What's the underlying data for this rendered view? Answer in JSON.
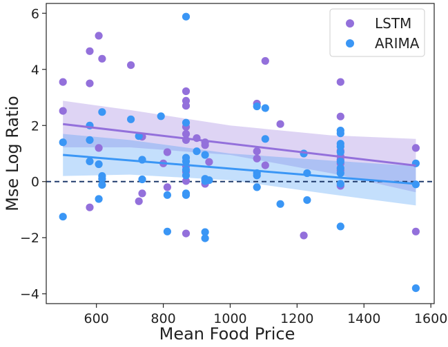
{
  "chart_data": {
    "type": "scatter",
    "xlabel": "Mean Food Price",
    "ylabel": "Mse Log Ratio",
    "xlim": [
      450,
      1610
    ],
    "ylim": [
      -4.35,
      6.35
    ],
    "xticks": [
      600,
      800,
      1000,
      1200,
      1400,
      1600
    ],
    "xtick_labels": [
      "600",
      "800",
      "1000",
      "1200",
      "1400",
      "1600"
    ],
    "yticks": [
      -4,
      -2,
      0,
      2,
      4,
      6
    ],
    "ytick_labels": [
      "−4",
      "−2",
      "0",
      "2",
      "4",
      "6"
    ],
    "grid": false,
    "legend_position": "top-right",
    "reference_line": {
      "y": 0,
      "style": "dashed",
      "color": "#1f3a6b"
    },
    "series": [
      {
        "name": "LSTM",
        "color": "#9370db",
        "points": [
          [
            500,
            3.55
          ],
          [
            500,
            2.52
          ],
          [
            580,
            4.65
          ],
          [
            580,
            3.5
          ],
          [
            580,
            -0.92
          ],
          [
            607,
            5.2
          ],
          [
            607,
            1.2
          ],
          [
            617,
            4.38
          ],
          [
            703,
            4.15
          ],
          [
            727,
            -0.7
          ],
          [
            737,
            1.6
          ],
          [
            737,
            -0.42
          ],
          [
            800,
            0.65
          ],
          [
            812,
            1.05
          ],
          [
            812,
            -0.2
          ],
          [
            868,
            3.22
          ],
          [
            868,
            2.88
          ],
          [
            868,
            2.7
          ],
          [
            868,
            1.95
          ],
          [
            868,
            1.7
          ],
          [
            868,
            1.48
          ],
          [
            868,
            0.55
          ],
          [
            868,
            0.35
          ],
          [
            868,
            0.02
          ],
          [
            868,
            -1.85
          ],
          [
            900,
            1.55
          ],
          [
            925,
            1.4
          ],
          [
            925,
            1.3
          ],
          [
            925,
            -0.08
          ],
          [
            937,
            0.7
          ],
          [
            1080,
            2.78
          ],
          [
            1080,
            1.08
          ],
          [
            1080,
            0.82
          ],
          [
            1105,
            4.3
          ],
          [
            1105,
            0.58
          ],
          [
            1150,
            2.05
          ],
          [
            1220,
            -1.92
          ],
          [
            1330,
            3.55
          ],
          [
            1330,
            2.32
          ],
          [
            1330,
            1.1
          ],
          [
            1330,
            0.9
          ],
          [
            1330,
            0.78
          ],
          [
            1330,
            0.65
          ],
          [
            1330,
            0.4
          ],
          [
            1330,
            -0.15
          ],
          [
            1555,
            1.2
          ],
          [
            1555,
            -1.78
          ]
        ],
        "fit": {
          "x": [
            500,
            1555
          ],
          "y": [
            2.05,
            0.57
          ]
        },
        "band": {
          "x": [
            500,
            700,
            1000,
            1300,
            1555
          ],
          "lower": [
            1.22,
            1.22,
            0.95,
            0.3,
            -0.38
          ],
          "upper": [
            2.88,
            2.55,
            2.0,
            1.65,
            1.52
          ]
        }
      },
      {
        "name": "ARIMA",
        "color": "#3a96f5",
        "points": [
          [
            500,
            1.4
          ],
          [
            500,
            -1.25
          ],
          [
            580,
            2.0
          ],
          [
            580,
            1.48
          ],
          [
            580,
            0.72
          ],
          [
            607,
            0.62
          ],
          [
            607,
            -0.62
          ],
          [
            617,
            2.48
          ],
          [
            617,
            0.2
          ],
          [
            617,
            0.1
          ],
          [
            617,
            -0.12
          ],
          [
            703,
            2.22
          ],
          [
            727,
            1.62
          ],
          [
            737,
            0.78
          ],
          [
            737,
            0.08
          ],
          [
            793,
            2.33
          ],
          [
            812,
            -0.48
          ],
          [
            812,
            -1.78
          ],
          [
            868,
            5.88
          ],
          [
            868,
            2.1
          ],
          [
            868,
            0.85
          ],
          [
            868,
            0.72
          ],
          [
            868,
            0.42
          ],
          [
            868,
            0.22
          ],
          [
            868,
            -0.42
          ],
          [
            868,
            -0.48
          ],
          [
            900,
            1.08
          ],
          [
            925,
            0.95
          ],
          [
            925,
            0.1
          ],
          [
            925,
            0.02
          ],
          [
            925,
            -1.8
          ],
          [
            925,
            -2.02
          ],
          [
            937,
            0.05
          ],
          [
            1080,
            2.68
          ],
          [
            1080,
            0.3
          ],
          [
            1080,
            0.22
          ],
          [
            1080,
            -0.2
          ],
          [
            1105,
            2.62
          ],
          [
            1105,
            1.52
          ],
          [
            1150,
            -0.8
          ],
          [
            1220,
            1.0
          ],
          [
            1230,
            0.3
          ],
          [
            1230,
            -0.66
          ],
          [
            1330,
            1.82
          ],
          [
            1330,
            1.72
          ],
          [
            1330,
            1.35
          ],
          [
            1330,
            1.25
          ],
          [
            1330,
            1.05
          ],
          [
            1330,
            0.72
          ],
          [
            1330,
            0.48
          ],
          [
            1330,
            0.3
          ],
          [
            1330,
            -0.08
          ],
          [
            1330,
            -1.6
          ],
          [
            1555,
            0.65
          ],
          [
            1555,
            -0.1
          ],
          [
            1555,
            -3.8
          ]
        ],
        "fit": {
          "x": [
            500,
            1555
          ],
          "y": [
            0.95,
            -0.08
          ]
        },
        "band": {
          "x": [
            500,
            700,
            1000,
            1300,
            1555
          ],
          "lower": [
            0.2,
            0.25,
            0.05,
            -0.45,
            -0.85
          ],
          "upper": [
            1.7,
            1.48,
            1.0,
            0.75,
            0.55
          ]
        }
      }
    ]
  }
}
